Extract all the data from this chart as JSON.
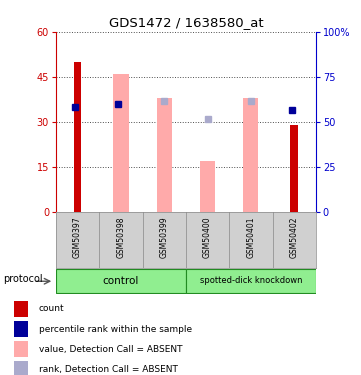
{
  "title": "GDS1472 / 1638580_at",
  "samples": [
    "GSM50397",
    "GSM50398",
    "GSM50399",
    "GSM50400",
    "GSM50401",
    "GSM50402"
  ],
  "red_bars": [
    50,
    0,
    0,
    0,
    0,
    29
  ],
  "pink_bars": [
    0,
    46,
    38,
    17,
    38,
    0
  ],
  "blue_squares_left": [
    35,
    36,
    null,
    null,
    null,
    34
  ],
  "light_blue_squares_left": [
    null,
    null,
    37,
    31,
    37,
    null
  ],
  "ylim_left": [
    0,
    60
  ],
  "ylim_right": [
    0,
    100
  ],
  "yticks_left": [
    0,
    15,
    30,
    45,
    60
  ],
  "yticks_right": [
    0,
    25,
    50,
    75,
    100
  ],
  "left_axis_color": "#cc0000",
  "right_axis_color": "#0000cc",
  "red_bar_color": "#cc0000",
  "pink_bar_color": "#ffaaaa",
  "blue_square_color": "#000099",
  "light_blue_square_color": "#aaaacc",
  "legend_items": [
    {
      "label": "count",
      "color": "#cc0000"
    },
    {
      "label": "percentile rank within the sample",
      "color": "#000099"
    },
    {
      "label": "value, Detection Call = ABSENT",
      "color": "#ffaaaa"
    },
    {
      "label": "rank, Detection Call = ABSENT",
      "color": "#aaaacc"
    }
  ],
  "protocol_label": "protocol",
  "bar_width": 0.35,
  "bg_color": "#ffffff",
  "plot_bg_color": "#ffffff",
  "figsize": [
    3.61,
    3.75
  ],
  "dpi": 100
}
